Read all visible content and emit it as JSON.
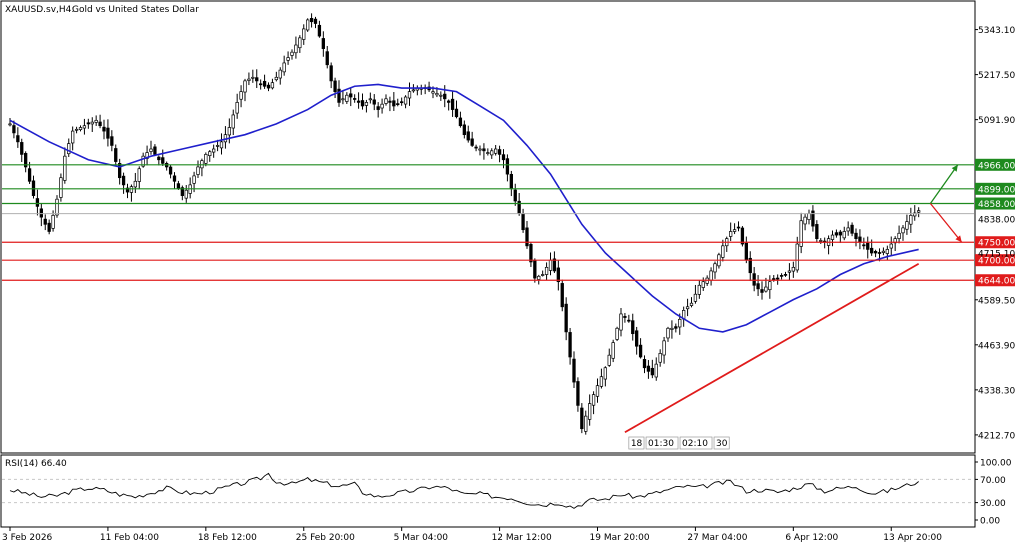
{
  "window": {
    "symbol": "XAUUSD.sv,H4:",
    "description": "Gold vs United States Dollar"
  },
  "colors": {
    "bull": "#000000",
    "bear": "#000000",
    "ma": "#1f1fcc",
    "support": "#e01b1b",
    "resistance": "#1e8a1e",
    "trendline": "#e01b1b",
    "grid": "#c8c8c8"
  },
  "chart_data": [
    {
      "type": "candlestick",
      "title": "XAUUSD.sv,H4: Gold vs United States Dollar",
      "ylim": [
        4165,
        5420
      ],
      "xlim": [
        0,
        240
      ],
      "y_ticks": [
        "5343.10",
        "5217.50",
        "5091.90",
        "4589.50",
        "4463.90",
        "4338.30",
        "4212.70"
      ],
      "y_tick_values": [
        5343.1,
        5217.5,
        5091.9,
        4589.5,
        4463.9,
        4338.3,
        4212.7
      ],
      "x_ticks": [
        "3 Feb 2026",
        "11 Feb 04:00",
        "18 Feb 12:00",
        "25 Feb 20:00",
        "5 Mar 04:00",
        "12 Mar 12:00",
        "19 Mar 20:00",
        "27 Mar 04:00",
        "6 Apr 12:00",
        "13 Apr 20:00"
      ],
      "x_tick_positions": [
        0,
        25,
        50,
        75,
        100,
        125,
        150,
        175,
        200,
        225
      ],
      "current_price": "4838.00",
      "partial_label": "4715.10",
      "price_path": [
        [
          0,
          5080
        ],
        [
          2,
          5030
        ],
        [
          4,
          4960
        ],
        [
          6,
          4880
        ],
        [
          8,
          4820
        ],
        [
          10,
          4780
        ],
        [
          12,
          4870
        ],
        [
          14,
          4990
        ],
        [
          16,
          5060
        ],
        [
          18,
          5070
        ],
        [
          20,
          5080
        ],
        [
          22,
          5090
        ],
        [
          24,
          5060
        ],
        [
          26,
          5020
        ],
        [
          28,
          4930
        ],
        [
          30,
          4890
        ],
        [
          32,
          4920
        ],
        [
          34,
          4990
        ],
        [
          36,
          5010
        ],
        [
          38,
          4980
        ],
        [
          40,
          4960
        ],
        [
          42,
          4920
        ],
        [
          44,
          4880
        ],
        [
          46,
          4910
        ],
        [
          48,
          4960
        ],
        [
          50,
          4995
        ],
        [
          52,
          5010
        ],
        [
          54,
          5030
        ],
        [
          56,
          5070
        ],
        [
          58,
          5140
        ],
        [
          60,
          5200
        ],
        [
          62,
          5210
        ],
        [
          64,
          5190
        ],
        [
          66,
          5180
        ],
        [
          68,
          5210
        ],
        [
          70,
          5250
        ],
        [
          72,
          5280
        ],
        [
          74,
          5320
        ],
        [
          76,
          5370
        ],
        [
          78,
          5360
        ],
        [
          80,
          5290
        ],
        [
          82,
          5200
        ],
        [
          84,
          5140
        ],
        [
          86,
          5160
        ],
        [
          88,
          5150
        ],
        [
          90,
          5130
        ],
        [
          92,
          5150
        ],
        [
          94,
          5120
        ],
        [
          96,
          5150
        ],
        [
          98,
          5130
        ],
        [
          100,
          5140
        ],
        [
          102,
          5170
        ],
        [
          104,
          5180
        ],
        [
          106,
          5180
        ],
        [
          108,
          5170
        ],
        [
          110,
          5160
        ],
        [
          112,
          5140
        ],
        [
          114,
          5100
        ],
        [
          116,
          5050
        ],
        [
          118,
          5020
        ],
        [
          120,
          5010
        ],
        [
          122,
          5000
        ],
        [
          124,
          5010
        ],
        [
          126,
          4980
        ],
        [
          128,
          4900
        ],
        [
          130,
          4830
        ],
        [
          132,
          4740
        ],
        [
          134,
          4650
        ],
        [
          136,
          4660
        ],
        [
          138,
          4700
        ],
        [
          140,
          4640
        ],
        [
          142,
          4500
        ],
        [
          144,
          4360
        ],
        [
          146,
          4230
        ],
        [
          148,
          4300
        ],
        [
          150,
          4350
        ],
        [
          152,
          4400
        ],
        [
          154,
          4470
        ],
        [
          156,
          4550
        ],
        [
          158,
          4530
        ],
        [
          160,
          4460
        ],
        [
          162,
          4400
        ],
        [
          164,
          4380
        ],
        [
          166,
          4440
        ],
        [
          168,
          4510
        ],
        [
          170,
          4510
        ],
        [
          172,
          4560
        ],
        [
          174,
          4580
        ],
        [
          176,
          4630
        ],
        [
          178,
          4650
        ],
        [
          180,
          4690
        ],
        [
          182,
          4740
        ],
        [
          184,
          4780
        ],
        [
          186,
          4790
        ],
        [
          188,
          4700
        ],
        [
          190,
          4630
        ],
        [
          192,
          4610
        ],
        [
          194,
          4640
        ],
        [
          196,
          4650
        ],
        [
          198,
          4660
        ],
        [
          200,
          4680
        ],
        [
          202,
          4810
        ],
        [
          204,
          4830
        ],
        [
          206,
          4760
        ],
        [
          208,
          4750
        ],
        [
          210,
          4770
        ],
        [
          212,
          4770
        ],
        [
          214,
          4790
        ],
        [
          216,
          4760
        ],
        [
          218,
          4740
        ],
        [
          220,
          4720
        ],
        [
          222,
          4720
        ],
        [
          224,
          4730
        ],
        [
          226,
          4760
        ],
        [
          228,
          4790
        ],
        [
          230,
          4825
        ],
        [
          232,
          4838
        ]
      ],
      "moving_average": [
        [
          0,
          5090
        ],
        [
          10,
          5030
        ],
        [
          20,
          4980
        ],
        [
          28,
          4960
        ],
        [
          36,
          4990
        ],
        [
          44,
          5010
        ],
        [
          52,
          5030
        ],
        [
          60,
          5050
        ],
        [
          68,
          5080
        ],
        [
          76,
          5120
        ],
        [
          82,
          5160
        ],
        [
          88,
          5185
        ],
        [
          94,
          5190
        ],
        [
          100,
          5180
        ],
        [
          108,
          5180
        ],
        [
          114,
          5170
        ],
        [
          120,
          5130
        ],
        [
          126,
          5090
        ],
        [
          132,
          5020
        ],
        [
          138,
          4940
        ],
        [
          142,
          4870
        ],
        [
          146,
          4800
        ],
        [
          152,
          4720
        ],
        [
          158,
          4660
        ],
        [
          164,
          4600
        ],
        [
          170,
          4550
        ],
        [
          176,
          4510
        ],
        [
          182,
          4500
        ],
        [
          188,
          4520
        ],
        [
          194,
          4555
        ],
        [
          200,
          4590
        ],
        [
          206,
          4620
        ],
        [
          212,
          4660
        ],
        [
          218,
          4690
        ],
        [
          224,
          4710
        ],
        [
          230,
          4725
        ],
        [
          232,
          4730
        ]
      ],
      "horizontal_levels": [
        {
          "price": 4966.0,
          "label": "4966.00",
          "kind": "resistance"
        },
        {
          "price": 4899.0,
          "label": "4899.00",
          "kind": "resistance"
        },
        {
          "price": 4858.0,
          "label": "4858.00",
          "kind": "resistance"
        },
        {
          "price": 4750.0,
          "label": "4750.00",
          "kind": "support"
        },
        {
          "price": 4700.0,
          "label": "4700.00",
          "kind": "support"
        },
        {
          "price": 4644.0,
          "label": "4644.00",
          "kind": "support"
        }
      ],
      "trendline": [
        [
          157,
          4220
        ],
        [
          232,
          4690
        ]
      ],
      "scenario_arrows": [
        {
          "from": [
            235,
            4858
          ],
          "to": [
            242,
            4966
          ],
          "kind": "up"
        },
        {
          "from": [
            235,
            4858
          ],
          "to": [
            243,
            4750
          ],
          "kind": "down"
        }
      ],
      "period_separator_labels": [
        "18",
        "01:30",
        "02:10",
        "30"
      ]
    },
    {
      "type": "line",
      "title": "RSI(14) 66.40",
      "ylim": [
        0,
        100
      ],
      "y_ticks": [
        "100.00",
        "70.00",
        "30.00",
        "0.00"
      ],
      "y_tick_values": [
        100,
        70,
        30,
        0
      ],
      "levels": [
        70,
        30
      ],
      "values": [
        [
          0,
          52
        ],
        [
          4,
          46
        ],
        [
          8,
          40
        ],
        [
          12,
          42
        ],
        [
          16,
          50
        ],
        [
          20,
          55
        ],
        [
          24,
          52
        ],
        [
          28,
          44
        ],
        [
          32,
          40
        ],
        [
          36,
          47
        ],
        [
          40,
          55
        ],
        [
          44,
          48
        ],
        [
          48,
          45
        ],
        [
          52,
          50
        ],
        [
          56,
          58
        ],
        [
          60,
          64
        ],
        [
          64,
          72
        ],
        [
          66,
          80
        ],
        [
          68,
          66
        ],
        [
          72,
          62
        ],
        [
          76,
          70
        ],
        [
          80,
          64
        ],
        [
          84,
          58
        ],
        [
          88,
          62
        ],
        [
          90,
          48
        ],
        [
          94,
          40
        ],
        [
          98,
          45
        ],
        [
          104,
          52
        ],
        [
          108,
          58
        ],
        [
          112,
          55
        ],
        [
          116,
          44
        ],
        [
          120,
          45
        ],
        [
          124,
          40
        ],
        [
          128,
          38
        ],
        [
          132,
          30
        ],
        [
          136,
          26
        ],
        [
          140,
          30
        ],
        [
          144,
          22
        ],
        [
          148,
          34
        ],
        [
          152,
          36
        ],
        [
          156,
          44
        ],
        [
          160,
          40
        ],
        [
          164,
          45
        ],
        [
          168,
          52
        ],
        [
          172,
          58
        ],
        [
          176,
          56
        ],
        [
          180,
          62
        ],
        [
          184,
          66
        ],
        [
          188,
          50
        ],
        [
          192,
          52
        ],
        [
          196,
          48
        ],
        [
          200,
          54
        ],
        [
          204,
          62
        ],
        [
          208,
          50
        ],
        [
          212,
          55
        ],
        [
          216,
          58
        ],
        [
          220,
          46
        ],
        [
          224,
          50
        ],
        [
          228,
          58
        ],
        [
          232,
          66.4
        ]
      ]
    }
  ]
}
